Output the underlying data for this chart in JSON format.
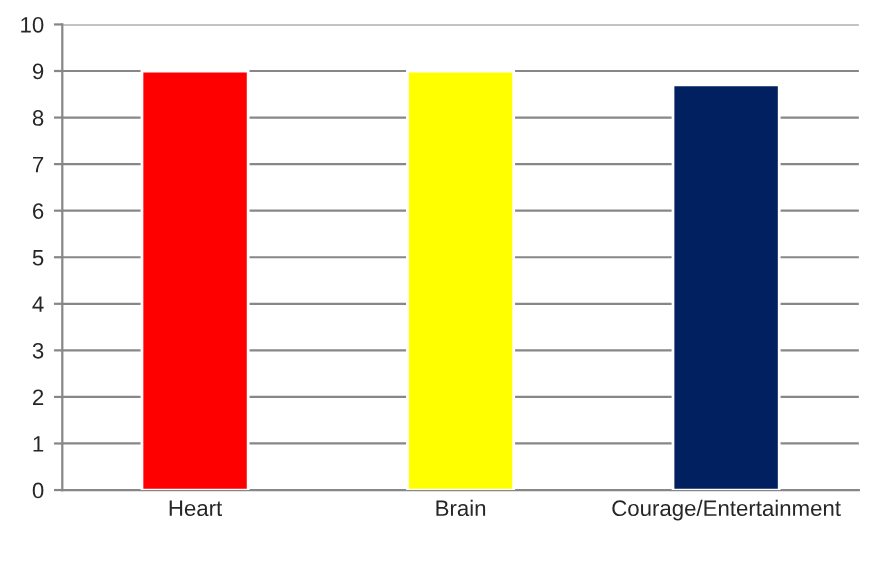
{
  "chart_data": {
    "type": "bar",
    "categories": [
      "Heart",
      "Brain",
      "Courage/Entertainment"
    ],
    "values": [
      9,
      9,
      8.7
    ],
    "colors": [
      "#ff0000",
      "#ffff00",
      "#002060"
    ],
    "ylim": [
      0,
      10
    ],
    "yticks": [
      0,
      1,
      2,
      3,
      4,
      5,
      6,
      7,
      8,
      9,
      10
    ],
    "grid": "y"
  }
}
